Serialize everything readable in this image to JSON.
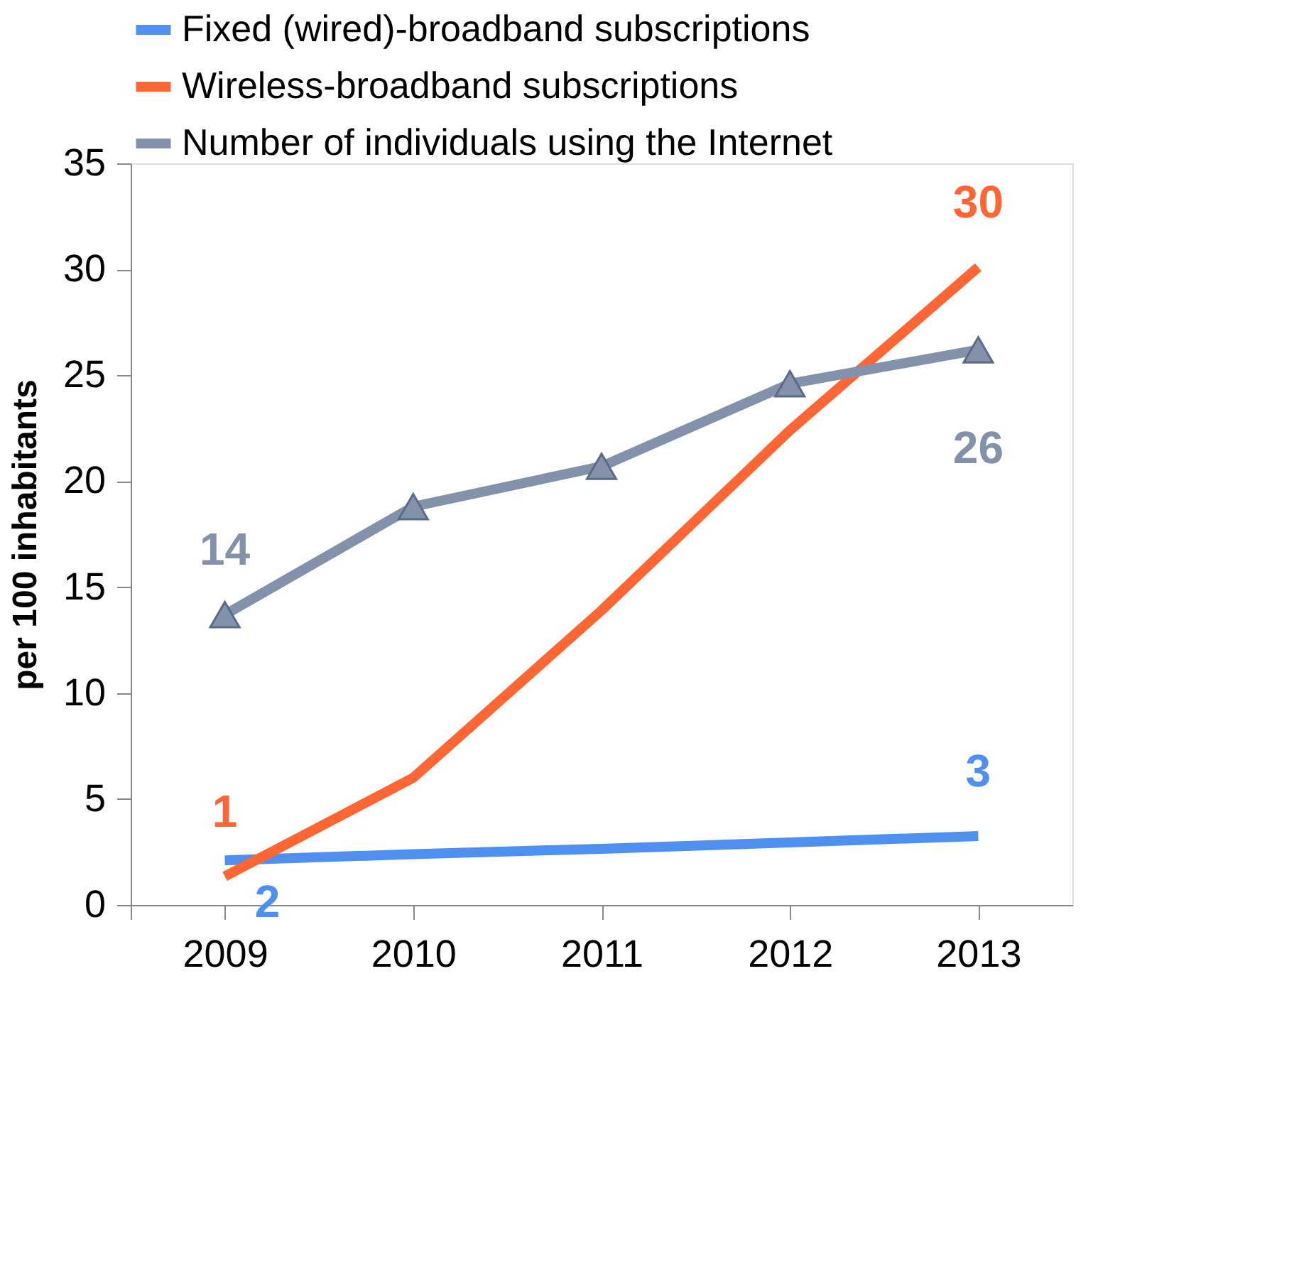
{
  "chart_data": {
    "type": "line",
    "ylabel": "per 100 inhabitants",
    "categories": [
      "2009",
      "2010",
      "2011",
      "2012",
      "2013"
    ],
    "series": [
      {
        "name": "Fixed (wired)-broadband subscriptions",
        "color": "#4f8ff0",
        "values": [
          2.1,
          2.4,
          2.65,
          2.95,
          3.25
        ],
        "value_labels": [
          "2",
          null,
          null,
          null,
          "3"
        ],
        "marker": "none"
      },
      {
        "name": "Wireless-broadband subscriptions",
        "color": "#ff6633",
        "values": [
          1.35,
          6.0,
          13.9,
          22.4,
          30.1
        ],
        "value_labels": [
          "1",
          null,
          null,
          null,
          "30"
        ],
        "marker": "none"
      },
      {
        "name": "Number of individuals using the Internet",
        "color": "#8391ab",
        "values": [
          13.7,
          18.8,
          20.7,
          24.6,
          26.2
        ],
        "value_labels": [
          "14",
          null,
          null,
          null,
          "26"
        ],
        "marker": "triangle"
      }
    ],
    "ylim": [
      0,
      35
    ],
    "yticks": [
      0,
      5,
      10,
      15,
      20,
      25,
      30,
      35
    ],
    "grid": false,
    "legend": "top",
    "line_style": "solid"
  }
}
